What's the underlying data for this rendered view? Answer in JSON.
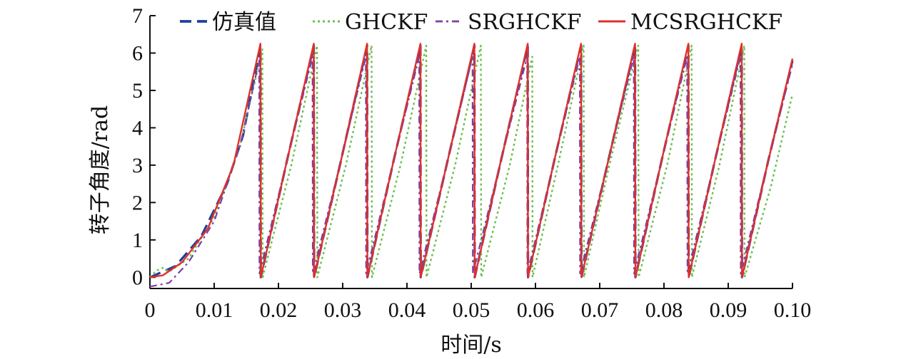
{
  "chart_data": {
    "type": "line",
    "xlabel": "时间/s",
    "ylabel": "转子角度/rad",
    "xlim": [
      0,
      0.1
    ],
    "ylim": [
      -0.3,
      7
    ],
    "x_ticks": [
      0,
      0.01,
      0.02,
      0.03,
      0.04,
      0.05,
      0.06,
      0.07,
      0.08,
      0.09,
      0.1
    ],
    "x_tick_labels": [
      "0",
      "0.01",
      "0.02",
      "0.03",
      "0.04",
      "0.05",
      "0.06",
      "0.07",
      "0.08",
      "0.09",
      "0.10"
    ],
    "y_ticks": [
      0,
      1,
      2,
      3,
      4,
      5,
      6,
      7
    ],
    "y_tick_labels": [
      "0",
      "1",
      "2",
      "3",
      "4",
      "5",
      "6",
      "7"
    ],
    "grid": false,
    "legend_position": "top",
    "series": [
      {
        "name": "仿真值",
        "color": "#1f3f9f",
        "style": "dashed",
        "x": [
          0,
          0.004,
          0.008,
          0.012,
          0.0145,
          0.0172,
          0.01725,
          0.0213,
          0.0255,
          0.02555,
          0.0297,
          0.0338,
          0.03385,
          0.0379,
          0.0421,
          0.04215,
          0.0463,
          0.0505,
          0.05055,
          0.0546,
          0.0588,
          0.05885,
          0.0629,
          0.0671,
          0.06715,
          0.0713,
          0.0755,
          0.07555,
          0.0796,
          0.0838,
          0.08385,
          0.0879,
          0.0921,
          0.09215,
          0.0962,
          0.1
        ],
        "y": [
          0,
          0.3,
          1.1,
          2.5,
          3.8,
          6.2,
          0,
          3.1,
          6.2,
          0,
          3.1,
          6.2,
          0,
          3.1,
          6.2,
          0,
          3.1,
          6.2,
          0,
          3.1,
          6.2,
          0,
          3.1,
          6.2,
          0,
          3.1,
          6.2,
          0,
          3.1,
          6.2,
          0,
          3.1,
          6.2,
          0,
          3.1,
          5.8
        ]
      },
      {
        "name": "GHCKF",
        "color": "#6abf4b",
        "style": "dotted",
        "x": [
          0,
          0.001,
          0.002,
          0.003,
          0.006,
          0.01,
          0.014,
          0.0175,
          0.01755,
          0.022,
          0.026,
          0.02605,
          0.0305,
          0.0345,
          0.03455,
          0.039,
          0.043,
          0.04305,
          0.0475,
          0.0515,
          0.05155,
          0.056,
          0.0595,
          0.05955,
          0.0635,
          0.0675,
          0.06755,
          0.0715,
          0.076,
          0.07605,
          0.0805,
          0.0843,
          0.08435,
          0.0885,
          0.0925,
          0.09255,
          0.0966,
          0.1
        ],
        "y": [
          0,
          0.18,
          0.25,
          0.15,
          0.5,
          1.6,
          3.5,
          6.1,
          0,
          3.0,
          6.2,
          0,
          3.0,
          6.2,
          0,
          3.0,
          6.2,
          0,
          3.0,
          6.2,
          0,
          3.0,
          5.9,
          0,
          3.0,
          6.2,
          0,
          3.0,
          6.2,
          0,
          3.0,
          6.2,
          0,
          2.9,
          6.2,
          0,
          2.4,
          4.9
        ]
      },
      {
        "name": "SRGHCKF",
        "color": "#7b3fa8",
        "style": "dashdot",
        "x": [
          0,
          0.003,
          0.006,
          0.01,
          0.014,
          0.017,
          0.01705,
          0.0213,
          0.0253,
          0.02535,
          0.0297,
          0.0336,
          0.03365,
          0.0379,
          0.0419,
          0.04195,
          0.0463,
          0.0502,
          0.05025,
          0.0546,
          0.0587,
          0.05875,
          0.0629,
          0.0669,
          0.06695,
          0.0713,
          0.0753,
          0.07535,
          0.0796,
          0.0836,
          0.08365,
          0.0879,
          0.0919,
          0.09195,
          0.0962,
          0.1
        ],
        "y": [
          -0.25,
          -0.15,
          0.4,
          1.5,
          3.5,
          5.8,
          0.1,
          3.1,
          5.9,
          0.1,
          3.1,
          5.9,
          0.1,
          3.1,
          5.9,
          0.1,
          3.1,
          5.9,
          0.1,
          3.1,
          5.9,
          0.1,
          3.1,
          5.9,
          0.1,
          3.1,
          5.9,
          0.1,
          3.1,
          5.9,
          0.1,
          3.1,
          5.9,
          0.1,
          3.1,
          5.7
        ]
      },
      {
        "name": "MCSRGHCKF",
        "color": "#e0302b",
        "style": "solid",
        "x": [
          0,
          0.002,
          0.005,
          0.009,
          0.013,
          0.0172,
          0.01725,
          0.0213,
          0.0255,
          0.02555,
          0.0297,
          0.0338,
          0.03385,
          0.0379,
          0.0421,
          0.04215,
          0.0463,
          0.0505,
          0.05055,
          0.0546,
          0.0588,
          0.05885,
          0.0629,
          0.0671,
          0.06715,
          0.0713,
          0.0755,
          0.07555,
          0.0796,
          0.0838,
          0.08385,
          0.0879,
          0.0921,
          0.09215,
          0.0962,
          0.1
        ],
        "y": [
          0,
          0.05,
          0.4,
          1.3,
          3.0,
          6.25,
          0,
          3.1,
          6.25,
          0,
          3.1,
          6.25,
          0,
          3.1,
          6.25,
          0,
          3.1,
          6.25,
          0,
          3.1,
          6.25,
          0,
          3.1,
          6.25,
          0,
          3.1,
          6.25,
          0,
          3.1,
          6.25,
          0,
          3.1,
          6.25,
          0,
          3.1,
          5.85
        ]
      }
    ]
  }
}
